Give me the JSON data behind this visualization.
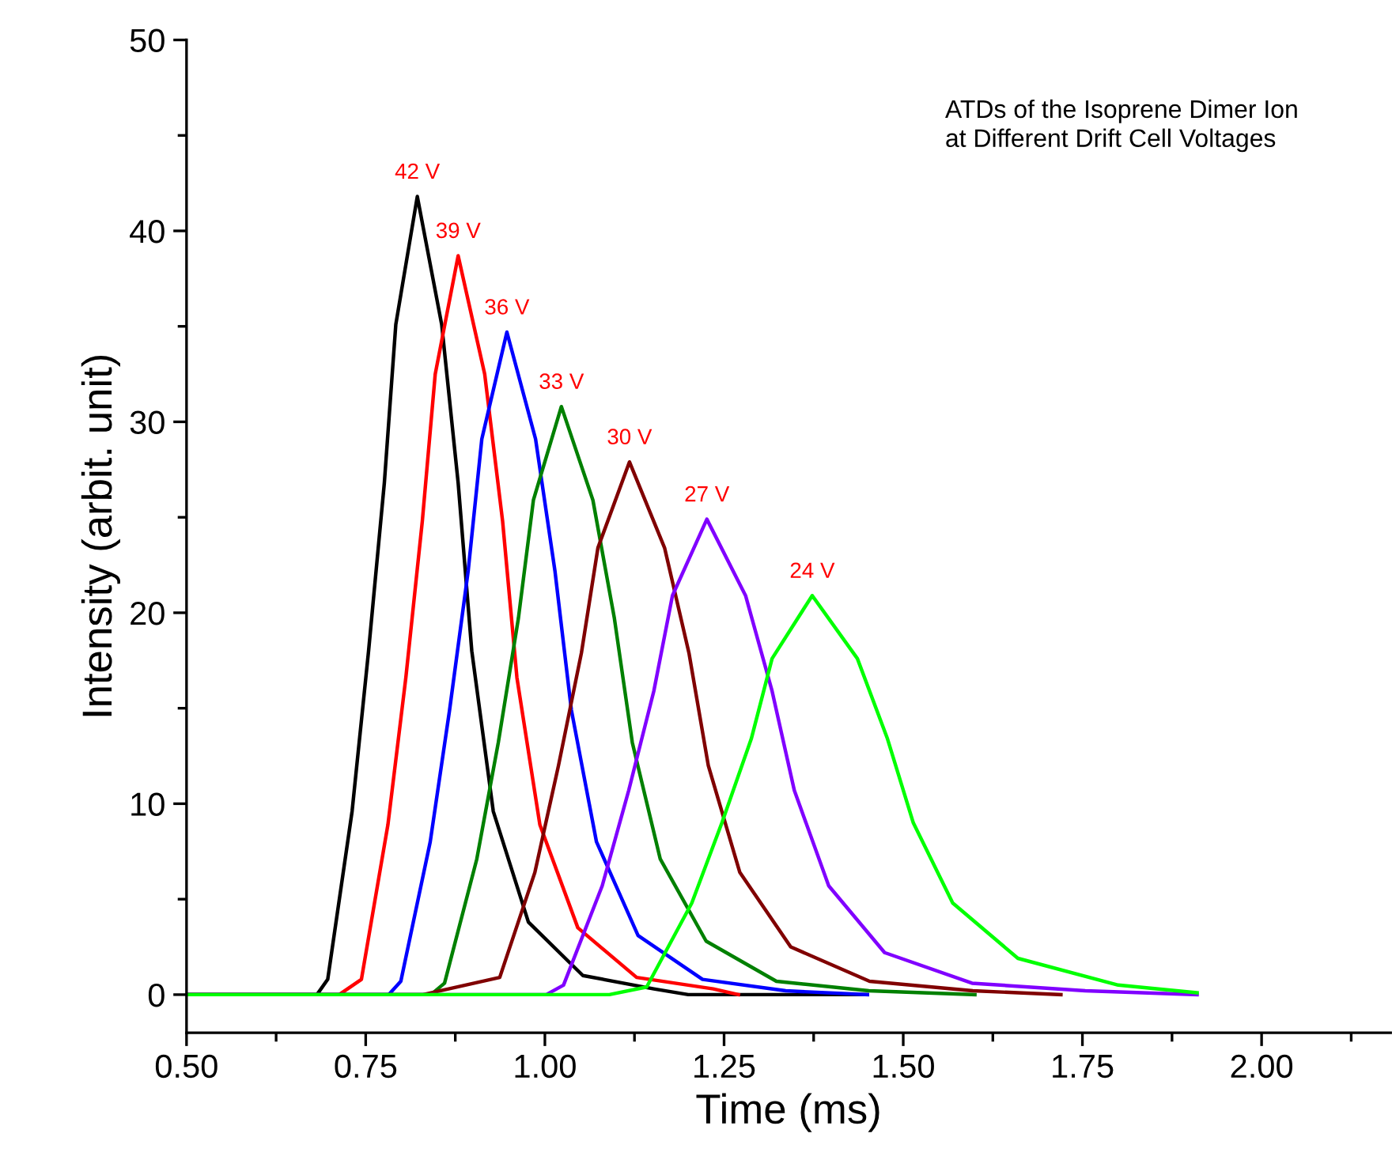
{
  "chart_data": {
    "type": "line",
    "title": "ATDs of the Isoprene Dimer Ion\nat Different Drift Cell Voltages",
    "xlabel": "Time (ms)",
    "ylabel": "Intensity (arbit. unit)",
    "xlim": [
      0.5,
      2.18
    ],
    "ylim": [
      -2,
      50
    ],
    "xticks": [
      {
        "value": 0.5,
        "label": "0.50"
      },
      {
        "value": 0.75,
        "label": "0.75"
      },
      {
        "value": 1.0,
        "label": "1.00"
      },
      {
        "value": 1.25,
        "label": "1.25"
      },
      {
        "value": 1.5,
        "label": "1.50"
      },
      {
        "value": 1.75,
        "label": "1.75"
      },
      {
        "value": 2.0,
        "label": "2.00"
      }
    ],
    "yticks": [
      0,
      10,
      20,
      30,
      40,
      50
    ],
    "grid": false,
    "legend": false,
    "line_style": "solid",
    "marker": "none",
    "series": [
      {
        "color": "#000000",
        "x": [
          0.5,
          0.682,
          0.697,
          0.731,
          0.754,
          0.776,
          0.792,
          0.822,
          0.856,
          0.879,
          0.898,
          0.928,
          0.977,
          1.053,
          1.152,
          1.2,
          1.45
        ],
        "values": [
          0,
          0,
          0.8,
          9.6,
          18.0,
          26.8,
          35.1,
          41.8,
          35.1,
          26.8,
          18.0,
          9.6,
          3.8,
          1.0,
          0.3,
          0,
          0
        ]
      },
      {
        "color": "#ff0000",
        "x": [
          0.5,
          0.713,
          0.744,
          0.781,
          0.806,
          0.829,
          0.847,
          0.879,
          0.916,
          0.941,
          0.961,
          0.993,
          1.046,
          1.128,
          1.235,
          1.27
        ],
        "values": [
          0,
          0,
          0.8,
          8.9,
          16.6,
          24.8,
          32.5,
          38.7,
          32.5,
          24.8,
          16.6,
          8.9,
          3.5,
          0.9,
          0.3,
          0
        ]
      },
      {
        "color": "#0000ff",
        "x": [
          0.5,
          0.782,
          0.799,
          0.84,
          0.867,
          0.893,
          0.912,
          0.947,
          0.987,
          1.014,
          1.037,
          1.072,
          1.13,
          1.22,
          1.336,
          1.45
        ],
        "values": [
          0,
          0,
          0.7,
          8.0,
          14.9,
          22.2,
          29.1,
          34.7,
          29.1,
          22.2,
          14.9,
          8.0,
          3.1,
          0.8,
          0.2,
          0
        ]
      },
      {
        "color": "#008000",
        "x": [
          0.5,
          0.841,
          0.86,
          0.905,
          0.935,
          0.963,
          0.984,
          1.023,
          1.067,
          1.097,
          1.122,
          1.161,
          1.225,
          1.323,
          1.452,
          1.6
        ],
        "values": [
          0,
          0,
          0.6,
          7.1,
          13.2,
          19.7,
          25.9,
          30.8,
          25.9,
          19.7,
          13.2,
          7.1,
          2.8,
          0.7,
          0.2,
          0
        ]
      },
      {
        "color": "#800000",
        "x": [
          0.5,
          0.83,
          0.937,
          0.986,
          1.019,
          1.051,
          1.074,
          1.118,
          1.167,
          1.201,
          1.228,
          1.272,
          1.343,
          1.453,
          1.597,
          1.72
        ],
        "values": [
          0,
          0,
          0.9,
          6.4,
          12.0,
          17.9,
          23.4,
          27.9,
          23.4,
          17.9,
          12.0,
          6.4,
          2.5,
          0.7,
          0.2,
          0
        ]
      },
      {
        "color": "#8000ff",
        "x": [
          0.5,
          1.002,
          1.026,
          1.08,
          1.117,
          1.152,
          1.178,
          1.226,
          1.28,
          1.317,
          1.348,
          1.396,
          1.474,
          1.596,
          1.754,
          1.91
        ],
        "values": [
          0,
          0,
          0.5,
          5.7,
          10.7,
          15.9,
          20.9,
          24.9,
          20.9,
          15.9,
          10.7,
          5.7,
          2.2,
          0.6,
          0.2,
          0
        ]
      },
      {
        "color": "#00ff00",
        "x": [
          0.5,
          1.09,
          1.142,
          1.205,
          1.247,
          1.288,
          1.317,
          1.373,
          1.436,
          1.478,
          1.514,
          1.569,
          1.66,
          1.8,
          1.91
        ],
        "values": [
          0,
          0,
          0.4,
          4.8,
          9.0,
          13.4,
          17.6,
          20.9,
          17.6,
          13.4,
          9.0,
          4.8,
          1.9,
          0.5,
          0.1
        ]
      }
    ],
    "annotations": [
      {
        "text": "42 V",
        "x": 0.822,
        "y": 41.8
      },
      {
        "text": "39 V",
        "x": 0.879,
        "y": 38.7
      },
      {
        "text": "36 V",
        "x": 0.947,
        "y": 34.7
      },
      {
        "text": "33 V",
        "x": 1.023,
        "y": 30.8
      },
      {
        "text": "30 V",
        "x": 1.118,
        "y": 27.9
      },
      {
        "text": "27 V",
        "x": 1.226,
        "y": 24.9
      },
      {
        "text": "24 V",
        "x": 1.373,
        "y": 20.9
      }
    ]
  }
}
